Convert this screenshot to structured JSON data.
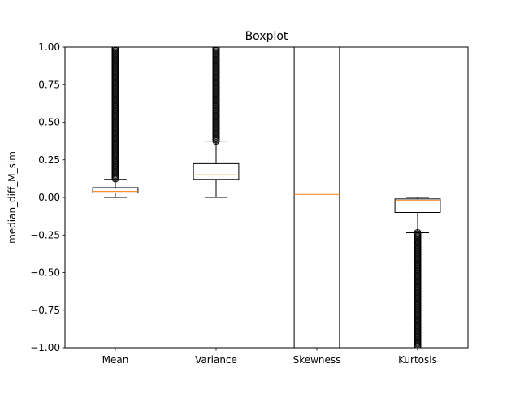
{
  "chart_data": {
    "type": "boxplot",
    "title": "Boxplot",
    "xlabel": "",
    "ylabel": "median_diff_M_sim",
    "ylim": [
      -1.0,
      1.0
    ],
    "yticks": [
      "−1.00",
      "−0.75",
      "−0.50",
      "−0.25",
      "0.00",
      "0.25",
      "0.50",
      "0.75",
      "1.00"
    ],
    "ytick_values": [
      -1.0,
      -0.75,
      -0.5,
      -0.25,
      0.0,
      0.25,
      0.5,
      0.75,
      1.0
    ],
    "grid": false,
    "colors": {
      "box": "#000000",
      "median": "#ff7f0e",
      "flier": "#000000"
    },
    "categories": [
      "Mean",
      "Variance",
      "Skewness",
      "Kurtosis"
    ],
    "boxes": [
      {
        "label": "Mean",
        "whislo": 0.0,
        "q1": 0.03,
        "med": 0.04,
        "q3": 0.065,
        "whishi": 0.12,
        "fliers_min": 0.12,
        "fliers_max": 1.0
      },
      {
        "label": "Variance",
        "whislo": 0.0,
        "q1": 0.12,
        "med": 0.15,
        "q3": 0.225,
        "whishi": 0.375,
        "fliers_min": 0.375,
        "fliers_max": 1.0
      },
      {
        "label": "Skewness",
        "whislo": -1.0,
        "q1": -1.0,
        "med": 0.02,
        "q3": 1.0,
        "whishi": 1.0,
        "fliers_min": null,
        "fliers_max": null
      },
      {
        "label": "Kurtosis",
        "whislo": -0.235,
        "q1": -0.1,
        "med": -0.02,
        "q3": -0.01,
        "whishi": 0.0,
        "fliers_min": -1.0,
        "fliers_max": -0.235
      }
    ]
  }
}
